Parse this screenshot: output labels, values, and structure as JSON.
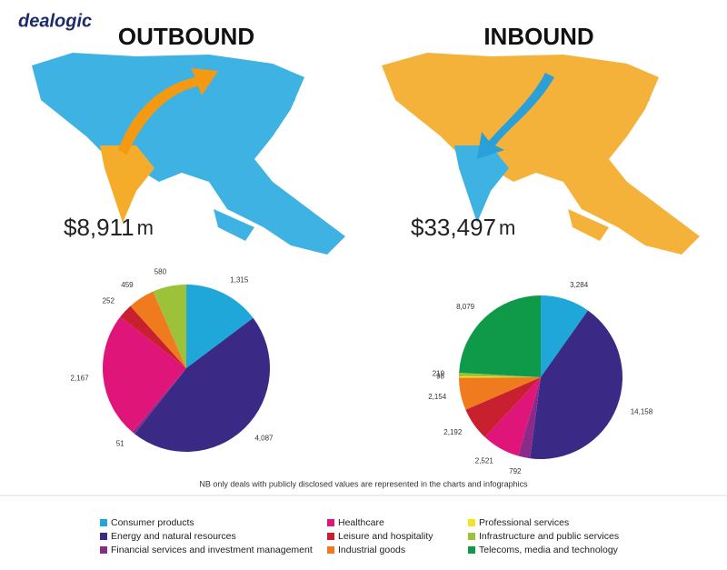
{
  "logo": "dealogic",
  "chart_data": [
    {
      "type": "pie",
      "title": "OUTBOUND",
      "total": "$8,911",
      "total_unit": "m",
      "categories": [
        "Consumer products",
        "Energy and natural resources",
        "Financial services and investment management",
        "Healthcare",
        "Leisure and hospitality",
        "Industrial goods",
        "Infrastructure and public services"
      ],
      "values": [
        1315,
        4087,
        51,
        2167,
        252,
        459,
        580
      ],
      "value_labels": [
        "1,315",
        "4,087",
        "51",
        "2,167",
        "252",
        "459",
        "580"
      ]
    },
    {
      "type": "pie",
      "title": "INBOUND",
      "total": "$33,497",
      "total_unit": "m",
      "categories": [
        "Consumer products",
        "Energy and natural resources",
        "Financial services and investment management",
        "Healthcare",
        "Leisure and hospitality",
        "Industrial goods",
        "Professional services",
        "Infrastructure and public services",
        "Telecoms, media and technology"
      ],
      "values": [
        3284,
        14158,
        792,
        2521,
        2192,
        2154,
        98,
        219,
        8079
      ],
      "value_labels": [
        "3,284",
        "14,158",
        "792",
        "2,521",
        "2,192",
        "2,154",
        "98",
        "219",
        "8,079"
      ]
    }
  ],
  "note": "NB only deals with publicly disclosed values are represented in the charts and infographics",
  "legend": [
    {
      "name": "Consumer products",
      "color": "#1ea7d8"
    },
    {
      "name": "Energy and natural resources",
      "color": "#3a2a86"
    },
    {
      "name": "Financial services and investment management",
      "color": "#8a2a8a"
    },
    {
      "name": "Healthcare",
      "color": "#e0157a"
    },
    {
      "name": "Leisure and hospitality",
      "color": "#c8202e"
    },
    {
      "name": "Industrial goods",
      "color": "#f07a1e"
    },
    {
      "name": "Professional services",
      "color": "#f2e41e"
    },
    {
      "name": "Infrastructure and public services",
      "color": "#9cc23a"
    },
    {
      "name": "Telecoms, media and technology",
      "color": "#0e9a48"
    }
  ]
}
